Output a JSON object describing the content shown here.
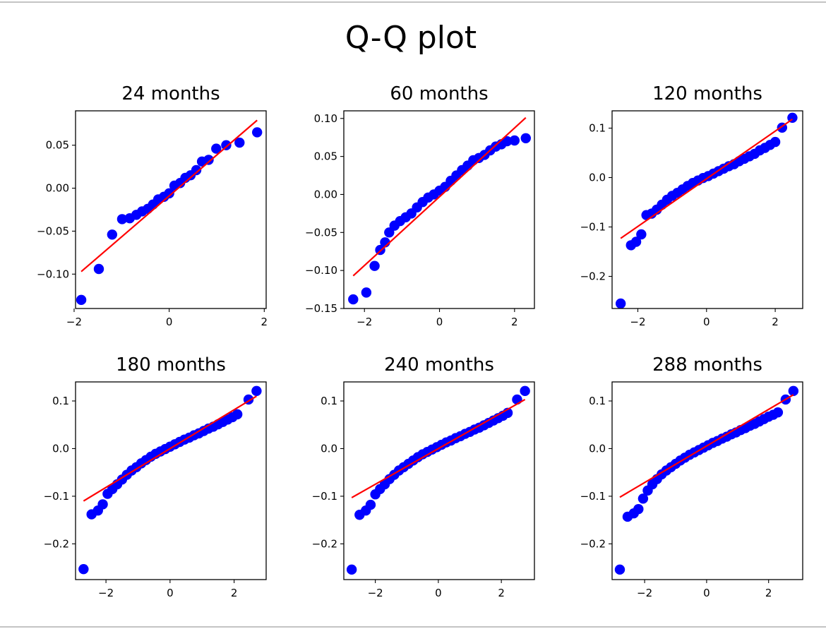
{
  "figure": {
    "title": "Q-Q plot"
  },
  "colors": {
    "points": "#0000ff",
    "fit_line": "#ff0000",
    "axes": "#000000",
    "background": "#ffffff"
  },
  "chart_data": [
    {
      "type": "scatter",
      "title": "24 months",
      "xlim": [
        -1.97,
        2.04
      ],
      "ylim": [
        -0.14,
        0.09
      ],
      "xticks": [
        -2,
        0,
        2
      ],
      "xtick_labels": [
        "−2",
        "0",
        "2"
      ],
      "yticks": [
        -0.1,
        -0.05,
        0.0,
        0.05
      ],
      "ytick_labels": [
        "−0.10",
        "−0.05",
        "0.00",
        "0.05"
      ],
      "line": {
        "x": [
          -1.85,
          1.85
        ],
        "y": [
          -0.097,
          0.079
        ]
      },
      "points": {
        "x": [
          -1.85,
          -1.48,
          -1.2,
          -0.99,
          -0.83,
          -0.69,
          -0.57,
          -0.45,
          -0.34,
          -0.23,
          -0.11,
          0.0,
          0.11,
          0.23,
          0.34,
          0.45,
          0.57,
          0.69,
          0.83,
          0.99,
          1.2,
          1.48,
          1.85
        ],
        "y": [
          -0.13,
          -0.094,
          -0.054,
          -0.036,
          -0.035,
          -0.031,
          -0.027,
          -0.024,
          -0.019,
          -0.013,
          -0.01,
          -0.006,
          0.003,
          0.006,
          0.012,
          0.015,
          0.021,
          0.031,
          0.033,
          0.046,
          0.05,
          0.053,
          0.065
        ]
      }
    },
    {
      "type": "scatter",
      "title": "60 months",
      "xlim": [
        -2.55,
        2.53
      ],
      "ylim": [
        -0.15,
        0.11
      ],
      "xticks": [
        -2,
        0,
        2
      ],
      "xtick_labels": [
        "−2",
        "0",
        "2"
      ],
      "yticks": [
        -0.15,
        -0.1,
        -0.05,
        0.0,
        0.05,
        0.1
      ],
      "ytick_labels": [
        "−0.15",
        "−0.10",
        "−0.05",
        "0.00",
        "0.05",
        "0.10"
      ],
      "line": {
        "x": [
          -2.3,
          2.3
        ],
        "y": [
          -0.107,
          0.101
        ]
      },
      "points": {
        "x": [
          -2.3,
          -1.95,
          -1.73,
          -1.58,
          -1.45,
          -1.34,
          -1.2,
          -1.05,
          -0.9,
          -0.75,
          -0.6,
          -0.45,
          -0.3,
          -0.15,
          0.0,
          0.15,
          0.3,
          0.45,
          0.6,
          0.75,
          0.9,
          1.05,
          1.2,
          1.35,
          1.5,
          1.65,
          1.8,
          2.0,
          2.3
        ],
        "y": [
          -0.138,
          -0.129,
          -0.094,
          -0.073,
          -0.063,
          -0.05,
          -0.041,
          -0.035,
          -0.03,
          -0.025,
          -0.017,
          -0.01,
          -0.004,
          0.0,
          0.005,
          0.01,
          0.018,
          0.025,
          0.032,
          0.038,
          0.045,
          0.048,
          0.052,
          0.058,
          0.063,
          0.066,
          0.07,
          0.071,
          0.074
        ]
      }
    },
    {
      "type": "scatter",
      "title": "120 months",
      "xlim": [
        -2.75,
        2.8
      ],
      "ylim": [
        -0.265,
        0.135
      ],
      "xticks": [
        -2,
        0,
        2
      ],
      "xtick_labels": [
        "−2",
        "0",
        "2"
      ],
      "yticks": [
        -0.2,
        -0.1,
        0.0,
        0.1
      ],
      "ytick_labels": [
        "−0.2",
        "−0.1",
        "0.0",
        "0.1"
      ],
      "line": {
        "x": [
          -2.5,
          2.5
        ],
        "y": [
          -0.123,
          0.118
        ]
      },
      "points": {
        "x": [
          -2.5,
          -2.2,
          -2.05,
          -1.9,
          -1.75,
          -1.6,
          -1.45,
          -1.3,
          -1.15,
          -1.0,
          -0.85,
          -0.7,
          -0.55,
          -0.4,
          -0.25,
          -0.1,
          0.05,
          0.2,
          0.35,
          0.5,
          0.65,
          0.8,
          0.95,
          1.1,
          1.25,
          1.4,
          1.55,
          1.7,
          1.85,
          2.0,
          2.2,
          2.5
        ],
        "y": [
          -0.255,
          -0.137,
          -0.13,
          -0.115,
          -0.076,
          -0.073,
          -0.065,
          -0.055,
          -0.045,
          -0.037,
          -0.031,
          -0.024,
          -0.017,
          -0.011,
          -0.006,
          -0.001,
          0.003,
          0.008,
          0.013,
          0.018,
          0.023,
          0.027,
          0.033,
          0.038,
          0.043,
          0.048,
          0.055,
          0.06,
          0.066,
          0.072,
          0.101,
          0.121
        ]
      }
    },
    {
      "type": "scatter",
      "title": "180 months",
      "xlim": [
        -2.95,
        3.0
      ],
      "ylim": [
        -0.275,
        0.14
      ],
      "xticks": [
        -2,
        0,
        2
      ],
      "xtick_labels": [
        "−2",
        "0",
        "2"
      ],
      "yticks": [
        -0.2,
        -0.1,
        0.0,
        0.1
      ],
      "ytick_labels": [
        "−0.2",
        "−0.1",
        "0.0",
        "0.1"
      ],
      "line": {
        "x": [
          -2.7,
          2.7
        ],
        "y": [
          -0.11,
          0.11
        ]
      },
      "points": {
        "x": [
          -2.7,
          -2.45,
          -2.25,
          -2.1,
          -1.95,
          -1.8,
          -1.65,
          -1.5,
          -1.35,
          -1.2,
          -1.05,
          -0.9,
          -0.75,
          -0.6,
          -0.45,
          -0.3,
          -0.15,
          0.0,
          0.15,
          0.3,
          0.45,
          0.6,
          0.75,
          0.9,
          1.05,
          1.2,
          1.35,
          1.5,
          1.65,
          1.8,
          1.95,
          2.1,
          2.45,
          2.7
        ],
        "y": [
          -0.253,
          -0.138,
          -0.13,
          -0.117,
          -0.095,
          -0.085,
          -0.075,
          -0.065,
          -0.055,
          -0.046,
          -0.039,
          -0.031,
          -0.024,
          -0.017,
          -0.011,
          -0.006,
          -0.001,
          0.004,
          0.009,
          0.014,
          0.019,
          0.023,
          0.028,
          0.032,
          0.037,
          0.042,
          0.046,
          0.051,
          0.056,
          0.061,
          0.066,
          0.072,
          0.103,
          0.121
        ]
      }
    },
    {
      "type": "scatter",
      "title": "240 months",
      "xlim": [
        -3.0,
        3.05
      ],
      "ylim": [
        -0.275,
        0.14
      ],
      "xticks": [
        -2,
        0,
        2
      ],
      "xtick_labels": [
        "−2",
        "0",
        "2"
      ],
      "yticks": [
        -0.2,
        -0.1,
        0.0,
        0.1
      ],
      "ytick_labels": [
        "−0.2",
        "−0.1",
        "0.0",
        "0.1"
      ],
      "line": {
        "x": [
          -2.75,
          2.75
        ],
        "y": [
          -0.103,
          0.103
        ]
      },
      "points": {
        "x": [
          -2.75,
          -2.5,
          -2.3,
          -2.15,
          -2.0,
          -1.85,
          -1.7,
          -1.55,
          -1.4,
          -1.25,
          -1.1,
          -0.95,
          -0.8,
          -0.65,
          -0.5,
          -0.35,
          -0.2,
          -0.05,
          0.1,
          0.25,
          0.4,
          0.55,
          0.7,
          0.85,
          1.0,
          1.15,
          1.3,
          1.45,
          1.6,
          1.75,
          1.9,
          2.05,
          2.2,
          2.5,
          2.75
        ],
        "y": [
          -0.254,
          -0.139,
          -0.13,
          -0.118,
          -0.096,
          -0.085,
          -0.075,
          -0.064,
          -0.055,
          -0.046,
          -0.039,
          -0.032,
          -0.025,
          -0.018,
          -0.012,
          -0.007,
          -0.002,
          0.003,
          0.008,
          0.013,
          0.017,
          0.022,
          0.026,
          0.031,
          0.035,
          0.04,
          0.044,
          0.049,
          0.054,
          0.059,
          0.064,
          0.069,
          0.075,
          0.103,
          0.121
        ]
      }
    },
    {
      "type": "scatter",
      "title": "288 months",
      "xlim": [
        -3.05,
        3.1
      ],
      "ylim": [
        -0.275,
        0.14
      ],
      "xticks": [
        -2,
        0,
        2
      ],
      "xtick_labels": [
        "−2",
        "0",
        "2"
      ],
      "yticks": [
        -0.2,
        -0.1,
        0.0,
        0.1
      ],
      "ytick_labels": [
        "−0.2",
        "−0.1",
        "0.0",
        "0.1"
      ],
      "line": {
        "x": [
          -2.8,
          2.8
        ],
        "y": [
          -0.102,
          0.113
        ]
      },
      "points": {
        "x": [
          -2.8,
          -2.55,
          -2.35,
          -2.2,
          -2.05,
          -1.9,
          -1.75,
          -1.6,
          -1.45,
          -1.3,
          -1.15,
          -1.0,
          -0.85,
          -0.7,
          -0.55,
          -0.4,
          -0.25,
          -0.1,
          0.05,
          0.2,
          0.35,
          0.5,
          0.65,
          0.8,
          0.95,
          1.1,
          1.25,
          1.4,
          1.55,
          1.7,
          1.85,
          2.0,
          2.15,
          2.3,
          2.55,
          2.8
        ],
        "y": [
          -0.254,
          -0.143,
          -0.136,
          -0.127,
          -0.105,
          -0.088,
          -0.075,
          -0.064,
          -0.054,
          -0.046,
          -0.039,
          -0.032,
          -0.025,
          -0.019,
          -0.013,
          -0.008,
          -0.003,
          0.002,
          0.007,
          0.012,
          0.016,
          0.021,
          0.025,
          0.03,
          0.034,
          0.039,
          0.043,
          0.048,
          0.052,
          0.057,
          0.062,
          0.067,
          0.071,
          0.076,
          0.103,
          0.121
        ]
      }
    }
  ]
}
